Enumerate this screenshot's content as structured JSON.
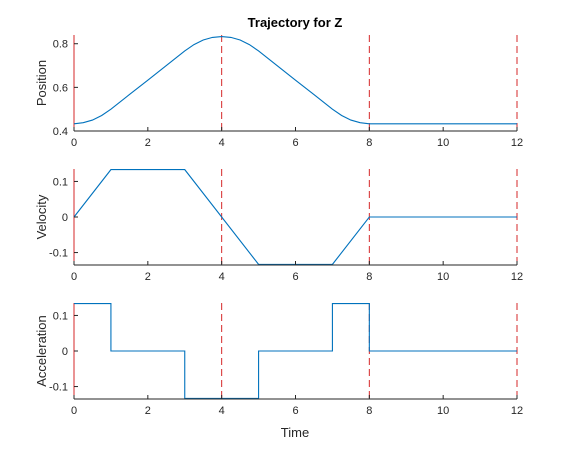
{
  "chart_data": {
    "type": "line",
    "title": "Trajectory for Z",
    "xlabel": "Time",
    "colors": {
      "series": "#0072bd",
      "markers": "#d62728",
      "axes": "#262626"
    },
    "markers_x": [
      4,
      8,
      12
    ],
    "subplots": [
      {
        "ylabel": "Position",
        "xlim": [
          0,
          12
        ],
        "ylim": [
          0.4,
          0.84
        ],
        "xticks": [
          "0",
          "2",
          "4",
          "6",
          "8",
          "10",
          "12"
        ],
        "yticks": [
          {
            "v": 0.4,
            "label": "0.4"
          },
          {
            "v": 0.6,
            "label": "0.6"
          },
          {
            "v": 0.8,
            "label": "0.8"
          }
        ],
        "series": [
          {
            "x": [
              0,
              0.25,
              0.5,
              0.75,
              1,
              1.5,
              2,
              2.5,
              3,
              3.25,
              3.5,
              3.75,
              4,
              4.25,
              4.5,
              4.75,
              5,
              5.5,
              6,
              6.5,
              7,
              7.25,
              7.5,
              7.75,
              8,
              12
            ],
            "y": [
              0.433,
              0.438,
              0.45,
              0.471,
              0.5,
              0.567,
              0.633,
              0.7,
              0.767,
              0.796,
              0.817,
              0.829,
              0.833,
              0.829,
              0.817,
              0.796,
              0.767,
              0.7,
              0.633,
              0.567,
              0.5,
              0.471,
              0.45,
              0.438,
              0.433,
              0.433
            ]
          }
        ]
      },
      {
        "ylabel": "Velocity",
        "xlim": [
          0,
          12
        ],
        "ylim": [
          -0.135,
          0.135
        ],
        "xticks": [
          "0",
          "2",
          "4",
          "6",
          "8",
          "10",
          "12"
        ],
        "yticks": [
          {
            "v": -0.1,
            "label": "-0.1"
          },
          {
            "v": 0,
            "label": "0"
          },
          {
            "v": 0.1,
            "label": "0.1"
          }
        ],
        "series": [
          {
            "x": [
              0,
              1,
              3,
              5,
              7,
              8,
              12
            ],
            "y": [
              0,
              0.1333,
              0.1333,
              -0.1333,
              -0.1333,
              0,
              0
            ]
          }
        ]
      },
      {
        "ylabel": "Acceleration",
        "xlim": [
          0,
          12
        ],
        "ylim": [
          -0.135,
          0.135
        ],
        "xticks": [
          "0",
          "2",
          "4",
          "6",
          "8",
          "10",
          "12"
        ],
        "yticks": [
          {
            "v": -0.1,
            "label": "-0.1"
          },
          {
            "v": 0,
            "label": "0"
          },
          {
            "v": 0.1,
            "label": "0.1"
          }
        ],
        "series": [
          {
            "x": [
              0,
              1,
              1,
              3,
              3,
              5,
              5,
              7,
              7,
              8,
              8,
              12
            ],
            "y": [
              0.1333,
              0.1333,
              0,
              0,
              -0.1333,
              -0.1333,
              0,
              0,
              0.1333,
              0.1333,
              0,
              0
            ]
          }
        ]
      }
    ]
  }
}
